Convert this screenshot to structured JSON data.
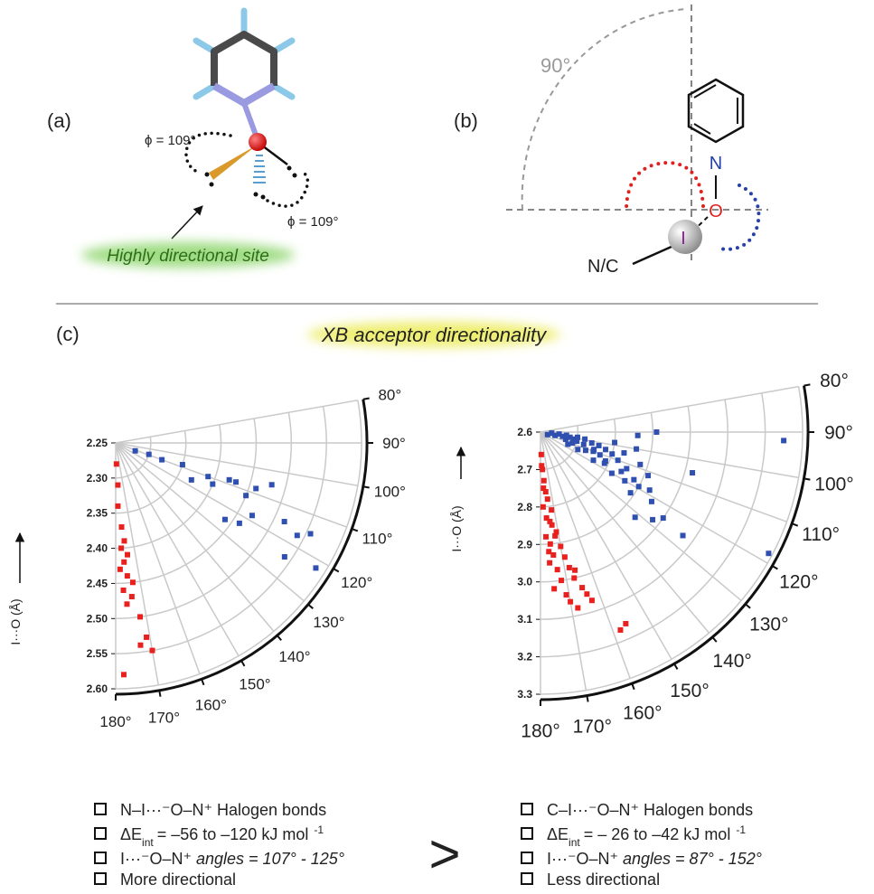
{
  "panels": {
    "a": {
      "label": "(a)",
      "phi_top": "ϕ = 109°",
      "phi_bottom": "ϕ = 109°",
      "caption": "Highly directional site"
    },
    "b": {
      "label": "(b)",
      "angle": "90°",
      "atom_n": "N",
      "atom_o": "O",
      "atom_i": "I",
      "group": "N/C"
    },
    "c": {
      "label": "(c)",
      "title": "XB acceptor directionality"
    }
  },
  "chart_data": [
    {
      "type": "polar-scatter",
      "y_label": "I···O (Å)",
      "rlim": [
        2.25,
        2.6
      ],
      "rticks": [
        2.25,
        {
          "value": 2.3,
          "label": "2.30"
        },
        2.35,
        {
          "value": 2.4,
          "label": "2.40"
        },
        2.45,
        {
          "value": 2.5,
          "label": "2.50"
        },
        2.55,
        {
          "value": 2.6,
          "label": "2.60"
        }
      ],
      "thetalim": [
        80,
        180
      ],
      "thetaticks": [
        {
          "value": 80,
          "label": "80°"
        },
        {
          "value": 90,
          "label": "90°"
        },
        {
          "value": 100,
          "label": "100°"
        },
        {
          "value": 110,
          "label": "110°"
        },
        {
          "value": 120,
          "label": "120°"
        },
        {
          "value": 130,
          "label": "130°"
        },
        {
          "value": 140,
          "label": "140°"
        },
        {
          "value": 150,
          "label": "150°"
        },
        {
          "value": 160,
          "label": "160°"
        },
        {
          "value": 170,
          "label": "170°"
        },
        {
          "value": 180,
          "label": "180°"
        }
      ],
      "grid": true,
      "series": [
        {
          "color": "#3050b0",
          "theta": [
            112,
            110,
            108,
            110,
            108,
            108,
            112,
            113,
            105,
            108,
            118,
            123,
            125,
            115,
            117,
            115,
            124,
            122,
            116,
            109
          ],
          "r": [
            2.28,
            2.32,
            2.35,
            2.39,
            2.43,
            2.46,
            2.45,
            2.4,
            2.48,
            2.42,
            2.47,
            2.46,
            2.44,
            2.515,
            2.54,
            2.556,
            2.54,
            2.586,
            2.37,
            2.3
          ]
        },
        {
          "color": "#e8201e",
          "theta": [
            178,
            177,
            178,
            176,
            175,
            177,
            174,
            176,
            178,
            175,
            173,
            177,
            174,
            176,
            172,
            171,
            173,
            170,
            178
          ],
          "r": [
            2.28,
            2.31,
            2.34,
            2.37,
            2.39,
            2.4,
            2.41,
            2.42,
            2.43,
            2.44,
            2.45,
            2.46,
            2.47,
            2.48,
            2.5,
            2.53,
            2.54,
            2.55,
            2.58
          ]
        }
      ]
    },
    {
      "type": "polar-scatter",
      "y_label": "I···O (Å)",
      "rlim": [
        2.6,
        3.3
      ],
      "rticks": [
        2.6,
        2.7,
        2.8,
        2.9,
        {
          "value": 3,
          "label": "3.0"
        },
        3.1,
        3.2,
        3.3
      ],
      "thetalim": [
        80,
        180
      ],
      "thetaticks": [
        {
          "value": 80,
          "label": "80°"
        },
        {
          "value": 90,
          "label": "90°"
        },
        {
          "value": 100,
          "label": "100°"
        },
        {
          "value": 110,
          "label": "110°"
        },
        {
          "value": 120,
          "label": "120°"
        },
        {
          "value": 130,
          "label": "130°"
        },
        {
          "value": 140,
          "label": "140°"
        },
        {
          "value": 150,
          "label": "150°"
        },
        {
          "value": 160,
          "label": "160°"
        },
        {
          "value": 170,
          "label": "170°"
        },
        {
          "value": 180,
          "label": "180°"
        }
      ],
      "grid": true,
      "series": [
        {
          "color": "#3050b0",
          "theta": [
            95,
            96,
            97,
            98,
            99,
            100,
            101,
            102,
            103,
            104,
            105,
            106,
            107,
            108,
            109,
            110,
            111,
            112,
            113,
            114,
            115,
            116,
            117,
            118,
            119,
            120,
            98,
            100,
            102,
            104,
            106,
            108,
            110,
            112,
            114,
            116,
            118,
            120,
            122,
            124,
            92,
            90,
            92,
            105,
            118,
            126,
            132,
            128,
            125,
            110,
            103
          ],
          "r": [
            2.63,
            2.65,
            2.67,
            2.7,
            2.72,
            2.68,
            2.66,
            2.74,
            2.76,
            2.7,
            2.78,
            2.72,
            2.8,
            2.75,
            2.69,
            2.82,
            2.77,
            2.73,
            2.85,
            2.79,
            2.71,
            2.84,
            2.88,
            2.76,
            2.9,
            2.82,
            2.8,
            2.86,
            2.69,
            2.83,
            2.67,
            2.88,
            2.75,
            2.91,
            2.68,
            2.79,
            2.93,
            2.86,
            2.95,
            2.89,
            2.86,
            2.91,
            3.25,
            3.02,
            3.29,
            3.07,
            2.94,
            2.98,
            3.0,
            2.62,
            2.64
          ]
        },
        {
          "color": "#e8201e",
          "theta": [
            178,
            177,
            176,
            175,
            174,
            178,
            176,
            173,
            172,
            177,
            175,
            171,
            174,
            170,
            176,
            173,
            169,
            172,
            168,
            175,
            171,
            167,
            170,
            166,
            165,
            168,
            164,
            163,
            158,
            156,
            177,
            174,
            176,
            178,
            172
          ],
          "r": [
            2.66,
            2.7,
            2.73,
            2.76,
            2.78,
            2.8,
            2.83,
            2.85,
            2.81,
            2.88,
            2.9,
            2.87,
            2.93,
            2.91,
            2.95,
            2.97,
            2.94,
            3.0,
            2.97,
            3.02,
            3.04,
            3.0,
            3.06,
            2.98,
            3.03,
            3.08,
            3.05,
            3.07,
            3.17,
            3.16,
            2.75,
            2.84,
            2.92,
            2.69,
            2.88
          ]
        }
      ]
    }
  ],
  "comparison": {
    "symbol": ">",
    "left": {
      "bond": "N–I···⁻O–N⁺ Halogen bonds",
      "energy": {
        "symbol": "ΔE",
        "sub": "int",
        "text": "= –56 to –120  kJ mol",
        "sup": "-1"
      },
      "angles": {
        "text": "I···⁻O–N⁺",
        "italic": "angles = 107° - 125°"
      },
      "note": "More directional"
    },
    "right": {
      "bond": "C–I···⁻O–N⁺ Halogen bonds",
      "energy": {
        "symbol": "ΔE",
        "sub": "int",
        "text": "= – 26 to –42  kJ mol",
        "sup": "-1"
      },
      "angles": {
        "text": "I···⁻O–N⁺",
        "italic": "angles = 87° - 152°"
      },
      "note": "Less directional"
    }
  }
}
